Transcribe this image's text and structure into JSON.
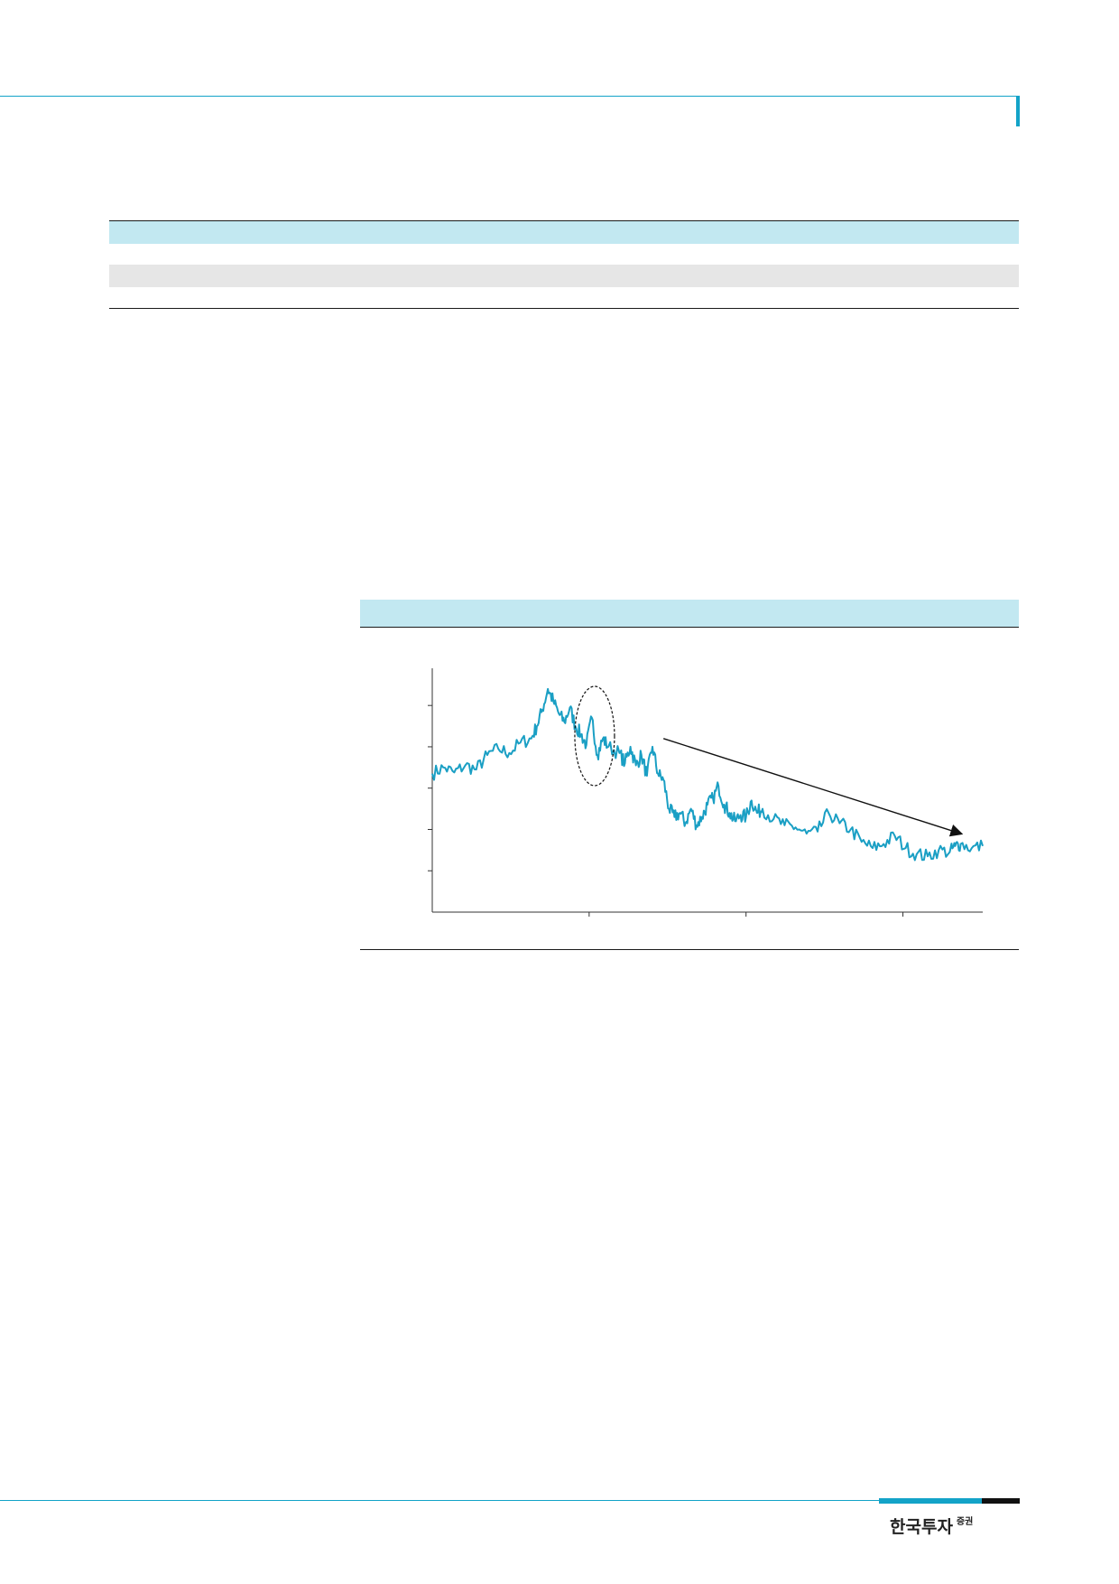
{
  "brand": {
    "logo_main": "한국투자",
    "logo_sub": "증권",
    "accent_color": "#13a3c8",
    "band_color": "#c2e8f1"
  },
  "chart_data": {
    "type": "line",
    "title": "",
    "xlabel": "",
    "ylabel": "",
    "series": [
      {
        "color": "#1a9fc4",
        "points": [
          [
            0,
            2.35
          ],
          [
            2,
            2.5
          ],
          [
            4,
            2.38
          ],
          [
            6,
            2.55
          ],
          [
            8,
            2.45
          ],
          [
            10,
            2.8
          ],
          [
            12,
            2.95
          ],
          [
            14,
            2.85
          ],
          [
            16,
            3.1
          ],
          [
            18,
            3.2
          ],
          [
            19,
            3.5
          ],
          [
            20,
            3.9
          ],
          [
            21,
            4.4
          ],
          [
            22,
            4.1
          ],
          [
            23,
            3.8
          ],
          [
            24,
            3.6
          ],
          [
            25,
            3.95
          ],
          [
            26,
            3.5
          ],
          [
            27,
            3.3
          ],
          [
            28,
            3.05
          ],
          [
            29,
            3.7
          ],
          [
            30,
            2.8
          ],
          [
            31,
            3.2
          ],
          [
            32,
            3.0
          ],
          [
            34,
            2.85
          ],
          [
            35,
            2.6
          ],
          [
            36,
            3.0
          ],
          [
            37,
            2.55
          ],
          [
            38,
            2.8
          ],
          [
            39,
            2.3
          ],
          [
            40,
            3.0
          ],
          [
            41,
            2.35
          ],
          [
            42,
            2.2
          ],
          [
            43,
            1.5
          ],
          [
            44,
            1.3
          ],
          [
            45,
            1.4
          ],
          [
            46,
            1.15
          ],
          [
            47,
            1.5
          ],
          [
            48,
            1.1
          ],
          [
            49,
            1.3
          ],
          [
            50,
            1.6
          ],
          [
            51,
            1.75
          ],
          [
            52,
            2.05
          ],
          [
            53,
            1.6
          ],
          [
            54,
            1.4
          ],
          [
            55,
            1.2
          ],
          [
            56,
            1.35
          ],
          [
            57,
            1.3
          ],
          [
            58,
            1.7
          ],
          [
            59,
            1.4
          ],
          [
            60,
            1.5
          ],
          [
            62,
            1.25
          ],
          [
            64,
            1.1
          ],
          [
            66,
            1.05
          ],
          [
            68,
            0.9
          ],
          [
            70,
            0.95
          ],
          [
            72,
            1.4
          ],
          [
            74,
            1.15
          ],
          [
            76,
            1.0
          ],
          [
            78,
            0.7
          ],
          [
            80,
            0.55
          ],
          [
            82,
            0.65
          ],
          [
            84,
            0.85
          ],
          [
            86,
            0.55
          ],
          [
            88,
            0.4
          ],
          [
            90,
            0.35
          ],
          [
            92,
            0.5
          ],
          [
            94,
            0.45
          ],
          [
            95,
            0.6
          ],
          [
            96,
            0.65
          ],
          [
            98,
            0.55
          ],
          [
            100,
            0.6
          ]
        ]
      }
    ],
    "annotations": [
      {
        "type": "ellipse",
        "near_x": 29.5,
        "style": "dashed"
      },
      {
        "type": "arrow",
        "from": [
          42,
          3.2
        ],
        "to": [
          96,
          0.9
        ]
      }
    ],
    "xlim": [
      0,
      100
    ],
    "ylim": [
      -1,
      4.9
    ],
    "y_ticks": [
      0,
      1,
      2,
      3,
      4
    ],
    "x_ticks": [
      28.5,
      57,
      85.5
    ],
    "grid": false,
    "legend": "none"
  }
}
